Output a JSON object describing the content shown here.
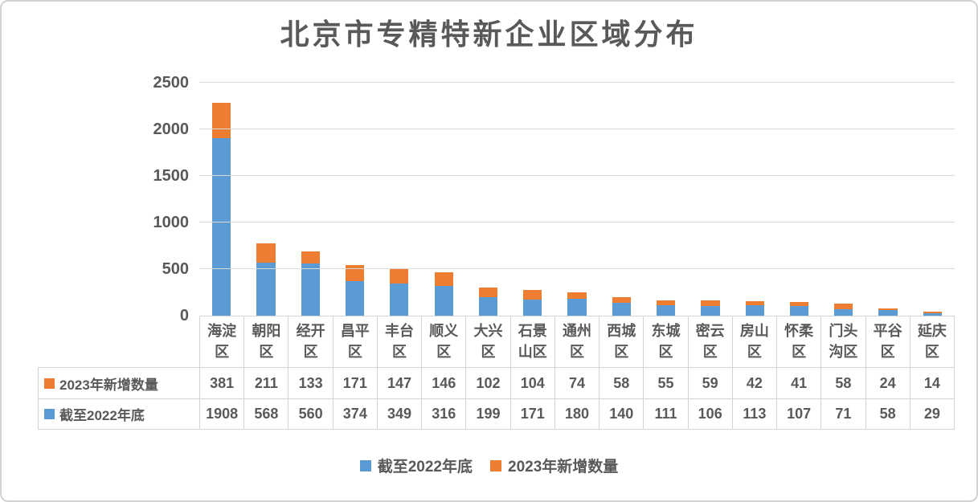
{
  "window": {
    "background": "#ffffff",
    "border_color": "#d2d2d2"
  },
  "colors": {
    "text": "#595959",
    "gridline": "#d9d9d9",
    "table_border": "#d3d3d3",
    "series_blue": "#5B9BD5",
    "series_orange": "#ED7D31"
  },
  "chart_data": {
    "type": "bar",
    "stacked": true,
    "title": "北京市专精特新企业区域分布",
    "categories": [
      "海淀区",
      "朝阳区",
      "经开区",
      "昌平区",
      "丰台区",
      "顺义区",
      "大兴区",
      "石景山区",
      "通州区",
      "西城区",
      "东城区",
      "密云区",
      "房山区",
      "怀柔区",
      "门头沟区",
      "平谷区",
      "延庆区"
    ],
    "series": [
      {
        "name": "截至2022年底",
        "color": "#5B9BD5",
        "values": [
          1908,
          568,
          560,
          374,
          349,
          316,
          199,
          171,
          180,
          140,
          111,
          106,
          113,
          107,
          71,
          58,
          29
        ]
      },
      {
        "name": "2023年新增数量",
        "color": "#ED7D31",
        "values": [
          381,
          211,
          133,
          171,
          147,
          146,
          102,
          104,
          74,
          58,
          55,
          59,
          42,
          41,
          58,
          24,
          14
        ]
      }
    ],
    "ylim": [
      0,
      2500
    ],
    "yticks": [
      0,
      500,
      1000,
      1500,
      2000,
      2500
    ],
    "grid": "horizontal",
    "legend_position": "bottom",
    "data_table": {
      "visible": true,
      "row_order": [
        "2023年新增数量",
        "截至2022年底"
      ]
    }
  }
}
